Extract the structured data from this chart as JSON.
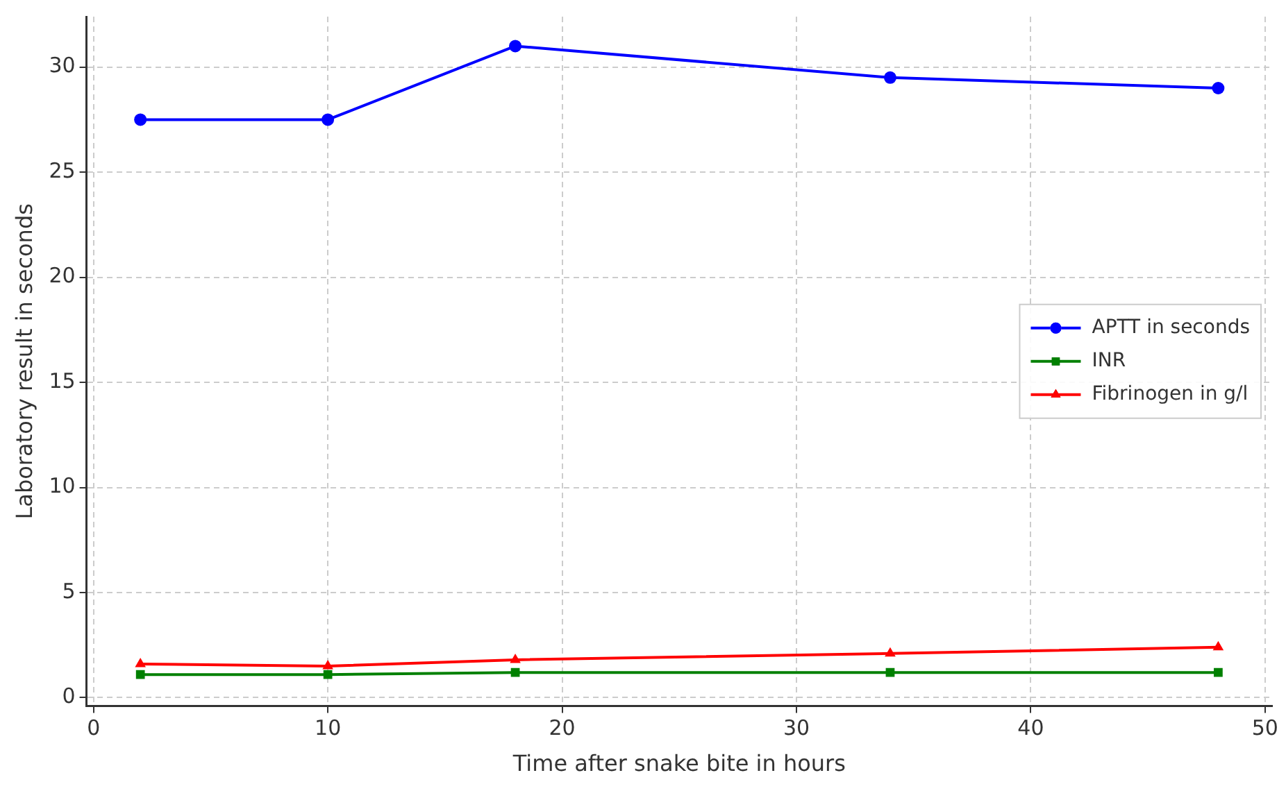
{
  "chart_data": {
    "type": "line",
    "xlabel": "Time after snake bite in hours",
    "ylabel": "Laboratory result in seconds",
    "x": [
      2,
      10,
      18,
      34,
      48
    ],
    "series": [
      {
        "name": "APTT in seconds",
        "color": "#0000ff",
        "marker": "circle",
        "values": [
          27.5,
          27.5,
          31,
          29.5,
          29
        ]
      },
      {
        "name": "INR",
        "color": "#008000",
        "marker": "square",
        "values": [
          1.1,
          1.1,
          1.2,
          1.2,
          1.2
        ]
      },
      {
        "name": "Fibrinogen in g/l",
        "color": "#ff0000",
        "marker": "triangle",
        "values": [
          1.6,
          1.5,
          1.8,
          2.1,
          2.4
        ]
      }
    ],
    "xlim": [
      -0.3,
      50.3
    ],
    "xticks": [
      0,
      10,
      20,
      30,
      40,
      50
    ],
    "ylim": [
      -0.4,
      32.4
    ],
    "yticks": [
      0,
      5,
      10,
      15,
      20,
      25,
      30
    ],
    "grid": true,
    "legend": "right",
    "line_style": "solid"
  }
}
